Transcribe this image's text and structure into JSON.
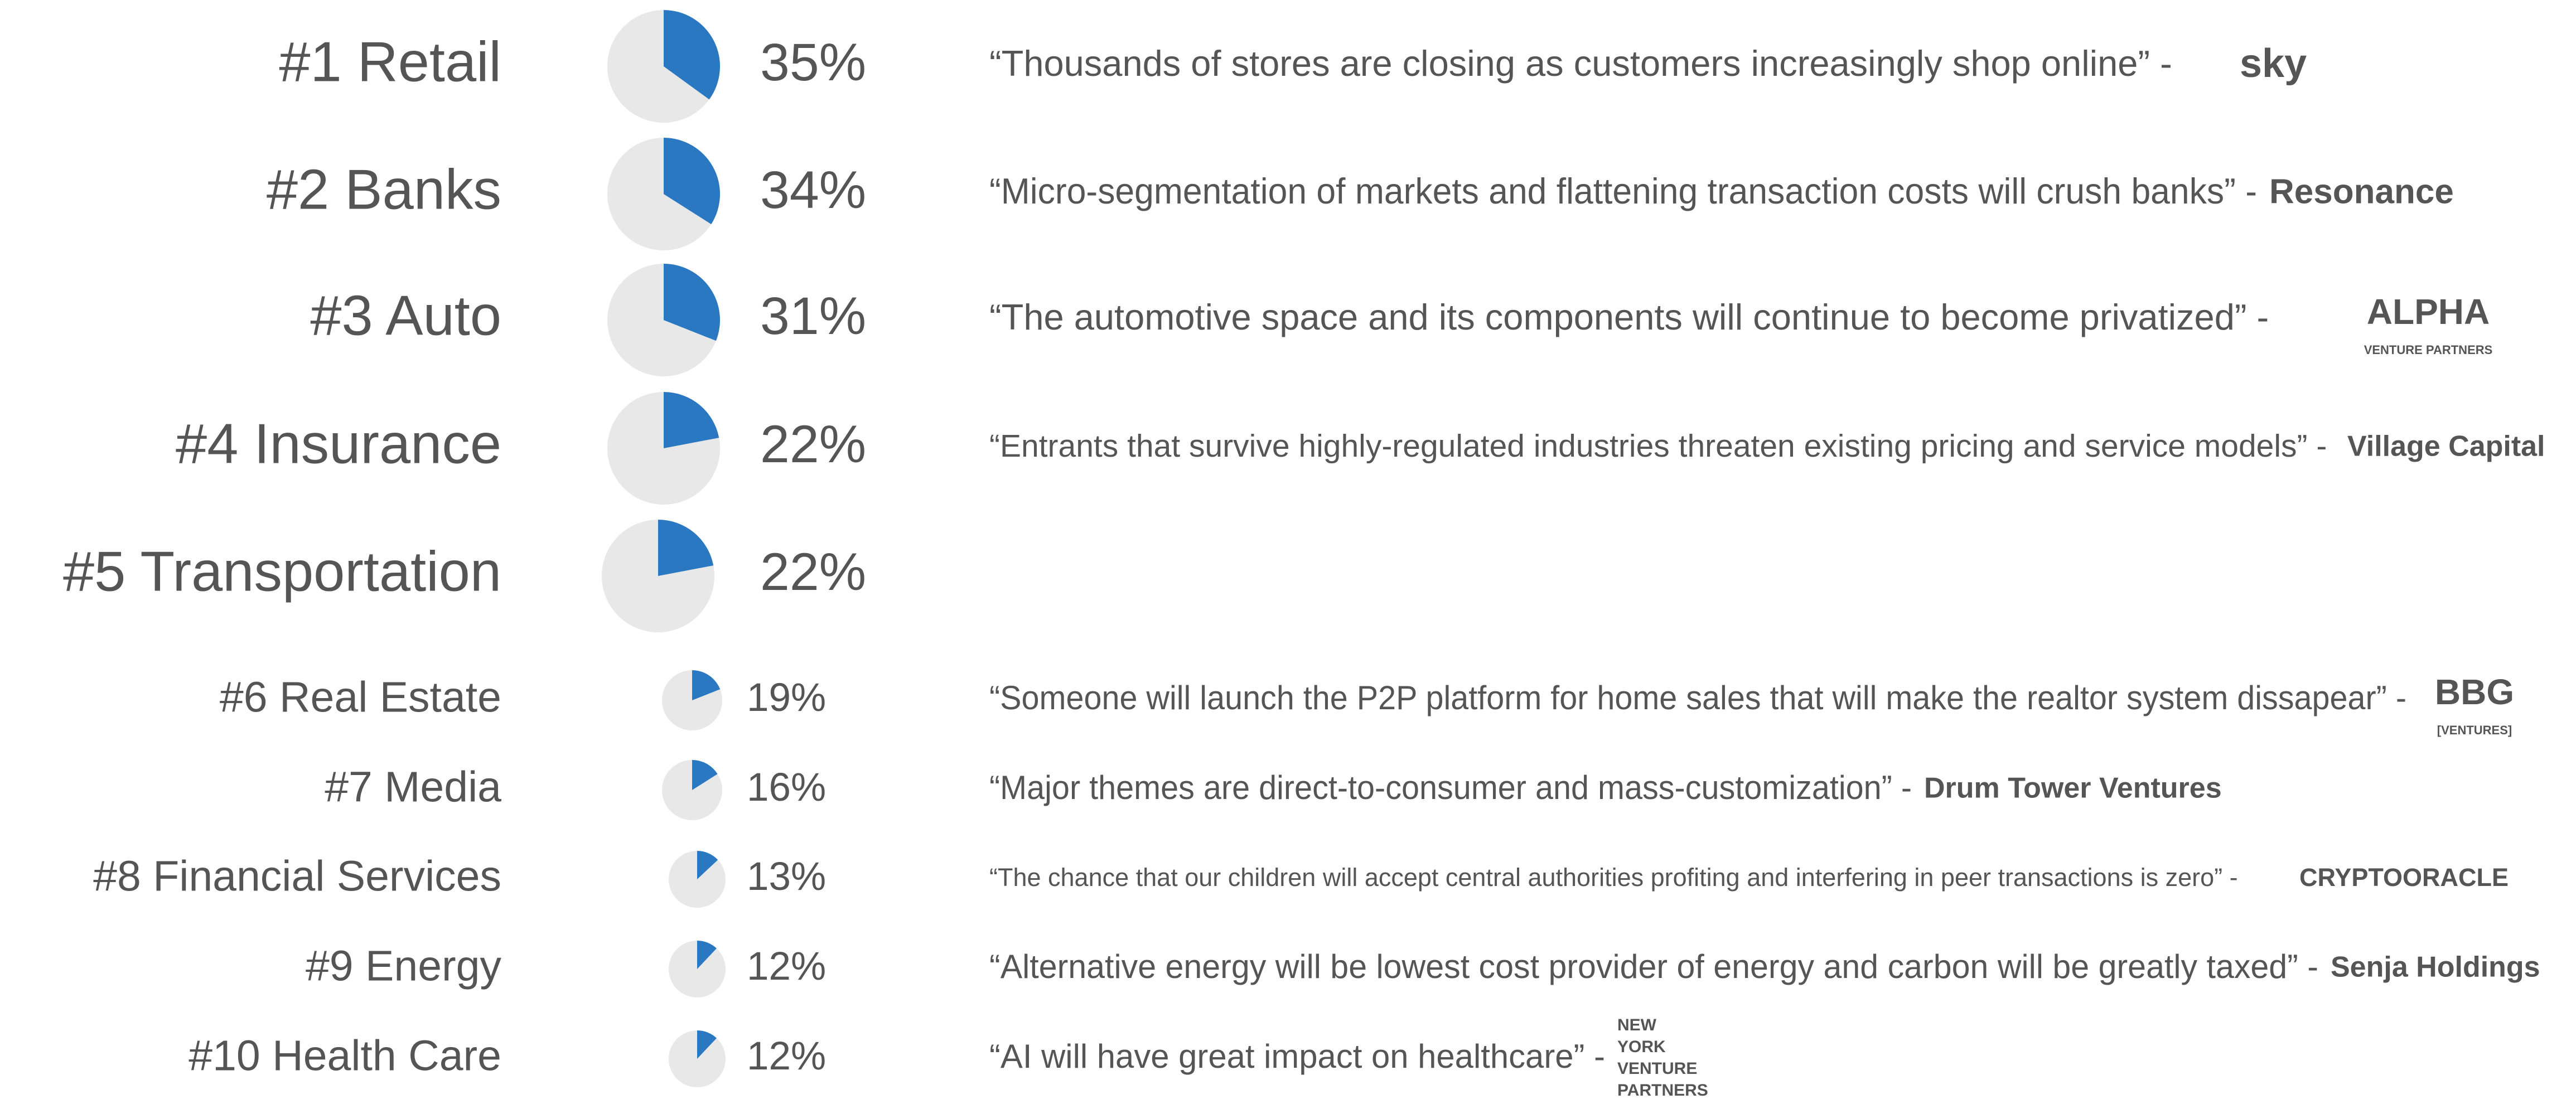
{
  "chart_data": [
    {
      "type": "pie",
      "title": "#1 Retail",
      "values": [
        35
      ],
      "value_labels": [
        "35%"
      ],
      "color": "#2b78c2",
      "quote": "“Thousands of stores are closing as customers increasingly shop online” -",
      "source": [
        "sky"
      ]
    },
    {
      "type": "pie",
      "title": "#2 Banks",
      "values": [
        34
      ],
      "value_labels": [
        "34%"
      ],
      "color": "#2b78c2",
      "quote": "“Micro-segmentation of markets and flattening transaction costs will crush banks” -",
      "source": [
        "Resonance"
      ]
    },
    {
      "type": "pie",
      "title": "#3 Auto",
      "values": [
        31
      ],
      "value_labels": [
        "31%"
      ],
      "color": "#2b78c2",
      "quote": "“The automotive space and its components will continue to become privatized” -",
      "source": [
        "ALPHA",
        "VENTURE PARTNERS"
      ]
    },
    {
      "type": "pie",
      "title": "#4 Insurance",
      "values": [
        22
      ],
      "value_labels": [
        "22%"
      ],
      "color": "#2b78c2",
      "quote": "“Entrants that survive highly-regulated industries threaten existing pricing and service models” -",
      "source": [
        "Village Capital"
      ]
    },
    {
      "type": "pie",
      "title": "#5 Transportation",
      "values": [
        22
      ],
      "value_labels": [
        "22%"
      ],
      "color": "#2b78c2"
    },
    {
      "type": "pie",
      "title": "#6 Real Estate",
      "values": [
        19
      ],
      "value_labels": [
        "19%"
      ],
      "color": "#2b78c2",
      "quote": "“Someone will launch the P2P platform for home sales that will make the realtor system dissapear” -",
      "source": [
        "BBG",
        "[VENTURES]"
      ]
    },
    {
      "type": "pie",
      "title": "#7 Media",
      "values": [
        16
      ],
      "value_labels": [
        "16%"
      ],
      "color": "#2b78c2",
      "quote": "“Major themes are direct-to-consumer and mass-customization” -",
      "source": [
        "Drum Tower Ventures"
      ]
    },
    {
      "type": "pie",
      "title": "#8 Financial Services",
      "values": [
        13
      ],
      "value_labels": [
        "13%"
      ],
      "color": "#2b78c2",
      "quote": "“The chance that our children will accept central authorities profiting and interfering in peer transactions is zero” -",
      "source": [
        "CRYPTOORACLE"
      ]
    },
    {
      "type": "pie",
      "title": "#9 Energy",
      "values": [
        12
      ],
      "value_labels": [
        "12%"
      ],
      "color": "#2b78c2",
      "quote": "“Alternative energy will be lowest cost provider of energy and carbon will be greatly taxed” -",
      "source": [
        "Senja Holdings"
      ]
    },
    {
      "type": "pie",
      "title": "#10 Health Care",
      "values": [
        12
      ],
      "value_labels": [
        "12%"
      ],
      "color": "#2b78c2",
      "quote": "“AI will have great impact on healthcare” -",
      "source": [
        "NEW",
        "YORK",
        "VENTURE",
        "PARTNERS"
      ]
    }
  ]
}
